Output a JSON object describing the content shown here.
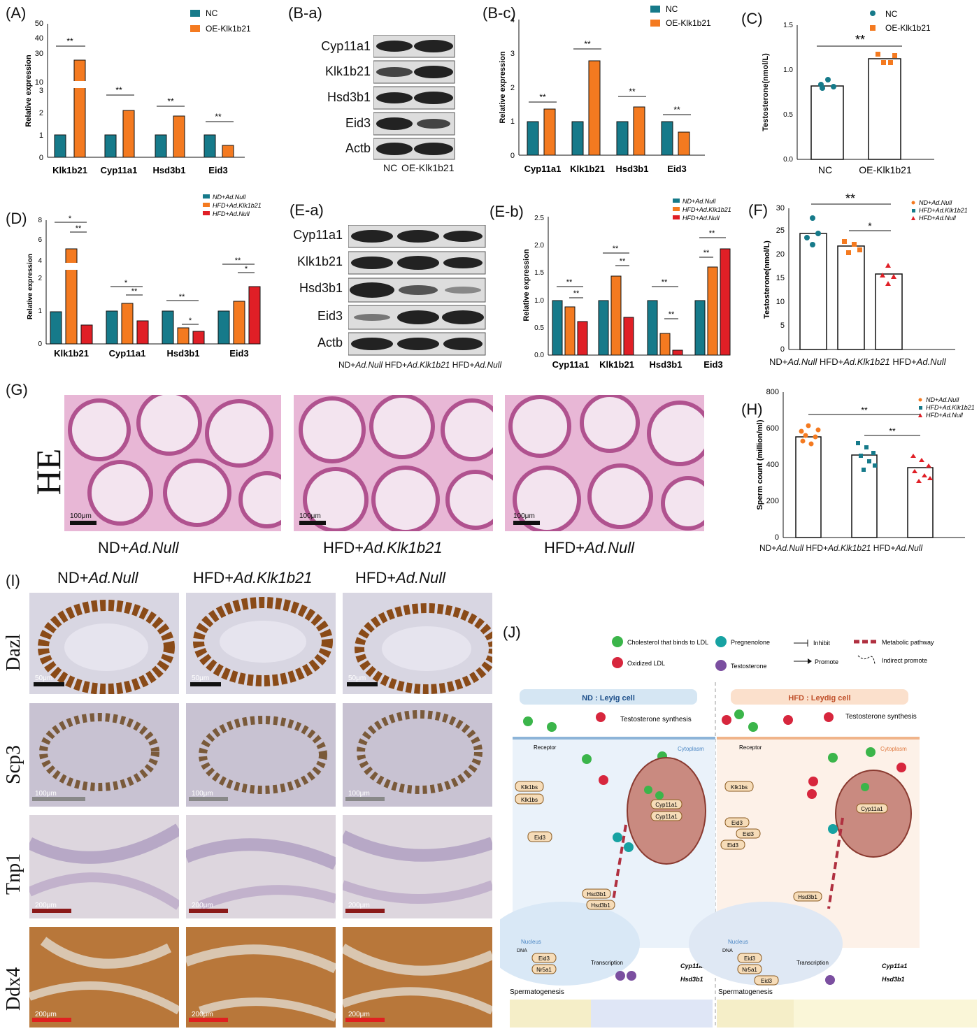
{
  "colors": {
    "nc": "#167a8a",
    "oe": "#f47a20",
    "red": "#e01f26",
    "bar_line": "#111111"
  },
  "panelA": {
    "label": "(A)",
    "ylabel": "Relative expression",
    "legend": [
      "NC",
      "OE-Klk1b21"
    ],
    "categories": [
      "Klk1b21",
      "Cyp11a1",
      "Hsd3b1",
      "Eid3"
    ],
    "sig": [
      "**",
      "**",
      "**",
      "**"
    ],
    "ticks_low": [
      "0",
      "1",
      "2",
      "3"
    ],
    "ticks_high": [
      "10",
      "30",
      "40",
      "50"
    ]
  },
  "panelBa": {
    "label": "(B-a)",
    "proteins": [
      "Cyp11a1",
      "Klk1b21",
      "Hsd3b1",
      "Eid3",
      "Actb"
    ],
    "lanes": [
      "NC",
      "OE-Klk1b21"
    ]
  },
  "panelBc": {
    "label": "(B-c)",
    "ylabel": "Relative expression",
    "legend": [
      "NC",
      "OE-Klk1b21"
    ],
    "categories": [
      "Cyp11a1",
      "Klk1b21",
      "Hsd3b1",
      "Eid3"
    ],
    "sig": [
      "**",
      "**",
      "**",
      "**"
    ],
    "ticks": [
      "0",
      "1",
      "2",
      "3",
      "4"
    ]
  },
  "panelC": {
    "label": "(C)",
    "ylabel": "Testosterone(nmol/L)",
    "legend": [
      "NC",
      "OE-Klk1b21"
    ],
    "groups": [
      "NC",
      "OE-Klk1b21"
    ],
    "sig": "**",
    "ticks": [
      "0.0",
      "0.5",
      "1.0",
      "1.5"
    ]
  },
  "panelD": {
    "label": "(D)",
    "ylabel": "Relative expression",
    "legend": [
      "ND+Ad.Null",
      "HFD+Ad.Klk1b21",
      "HFD+Ad.Null"
    ],
    "categories": [
      "Klk1b21",
      "Cyp11a1",
      "Hsd3b1",
      "Eid3"
    ],
    "ticks_low": [
      "0",
      "1",
      "2"
    ],
    "ticks_high": [
      "4",
      "6",
      "8"
    ],
    "sig": [
      [
        "*",
        "**"
      ],
      [
        "*",
        "**"
      ],
      [
        "**",
        "*"
      ],
      [
        "**",
        "*"
      ]
    ]
  },
  "panelEa": {
    "label": "(E-a)",
    "proteins": [
      "Cyp11a1",
      "Klk1b21",
      "Hsd3b1",
      "Eid3",
      "Actb"
    ],
    "lanes": [
      "ND+",
      "Ad.Null",
      "HFD+",
      "Ad.Klk1b21",
      "HFD+",
      "Ad.Null"
    ]
  },
  "panelEb": {
    "label": "(E-b)",
    "ylabel": "Relative expression",
    "legend": [
      "ND+Ad.Null",
      "HFD+Ad.Klk1b21",
      "HFD+Ad.Null"
    ],
    "categories": [
      "Cyp11a1",
      "Klk1b21",
      "Hsd3b1",
      "Eid3"
    ],
    "ticks": [
      "0.0",
      "0.5",
      "1.0",
      "1.5",
      "2.0",
      "2.5"
    ],
    "sig": [
      [
        "**",
        "**"
      ],
      [
        "**",
        "**"
      ],
      [
        "**",
        "**"
      ],
      [
        "**",
        "**"
      ]
    ]
  },
  "panelF": {
    "label": "(F)",
    "ylabel": "Testosterone(nmol/L)",
    "legend": [
      "ND+Ad.Null",
      "HFD+Ad.Klk1b21",
      "HFD+Ad.Null"
    ],
    "ticks": [
      "0",
      "5",
      "10",
      "15",
      "20",
      "25",
      "30"
    ],
    "sig": [
      "**",
      "*"
    ]
  },
  "panelG": {
    "label": "(G)",
    "stain": "HE",
    "scale": [
      "100μm",
      "100μm",
      "100μm"
    ]
  },
  "panelH": {
    "label": "(H)",
    "ylabel": "Sperm count (million/ml)",
    "legend": [
      "ND+Ad.Null",
      "HFD+Ad.Klk1b21",
      "HFD+Ad.Null"
    ],
    "ticks": [
      "0",
      "200",
      "400",
      "600",
      "800"
    ],
    "sig": [
      "**",
      "**"
    ]
  },
  "groups": [
    {
      "p": "ND+",
      "i": "Ad.Null"
    },
    {
      "p": "HFD+",
      "i": "Ad.Klk1b21"
    },
    {
      "p": "HFD+",
      "i": "Ad.Null"
    }
  ],
  "panelI": {
    "label": "(I)",
    "rows": [
      "Dazl",
      "Scp3",
      "Tnp1",
      "Ddx4"
    ],
    "scales": [
      "50μm",
      "100μm",
      "200μm",
      "200μm"
    ]
  },
  "panelJ": {
    "label": "(J)",
    "legend": [
      "Cholesterol that binds to LDL",
      "Oxidized LDL",
      "Pregnenolone",
      "Testosterone",
      "Inhibit",
      "Promote",
      "Metabolic pathway",
      "Indirect promote"
    ],
    "nd_title": "ND : Leyig cell",
    "hfd_title": "HFD : Leydig cell",
    "synth": "Testosterone synthesis",
    "receptor": "Receptor",
    "cytoplasm": "Cytoplasm",
    "nucleus": "Nucleus",
    "dna": "DNA",
    "transcription": "Transcription",
    "spermatogenesis": "Spermatogenesis",
    "klk1bs": "Klk1bs",
    "eid3": "Eid3",
    "nr5a1": "Nr5a1",
    "hsd3b1": "Hsd3b1",
    "cyp11a1": "Cyp11a1"
  }
}
